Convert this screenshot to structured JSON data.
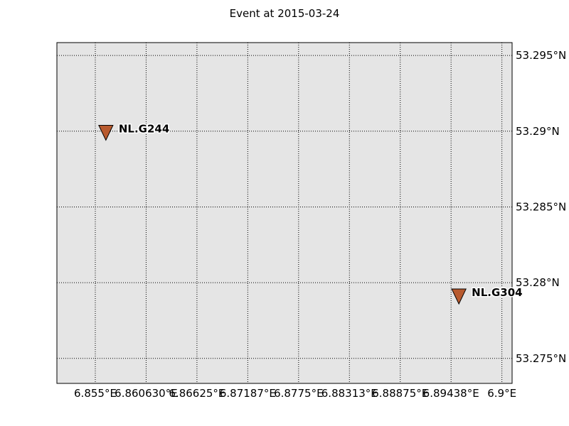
{
  "title": "Event at 2015-03-24",
  "map": {
    "background_color": "#e5e5e5",
    "grid": true,
    "lon_range": [
      6.85075,
      6.90113
    ],
    "lat_range": [
      53.27335,
      53.29585
    ],
    "lon_ticks": [
      {
        "value": 6.855,
        "label": "6.855°E"
      },
      {
        "value": 6.860625,
        "label": "6.860630°E"
      },
      {
        "value": 6.86625,
        "label": "6.86625°E"
      },
      {
        "value": 6.871875,
        "label": "6.87187°E"
      },
      {
        "value": 6.8775,
        "label": "6.8775°E"
      },
      {
        "value": 6.883125,
        "label": "6.88313°E"
      },
      {
        "value": 6.88875,
        "label": "6.88875°E"
      },
      {
        "value": 6.894375,
        "label": "6.89438°E"
      },
      {
        "value": 6.9,
        "label": "6.9°E"
      }
    ],
    "lat_ticks": [
      {
        "value": 53.275,
        "label": "53.275°N"
      },
      {
        "value": 53.28,
        "label": "53.28°N"
      },
      {
        "value": 53.285,
        "label": "53.285°N"
      },
      {
        "value": 53.29,
        "label": "53.29°N"
      },
      {
        "value": 53.295,
        "label": "53.295°N"
      }
    ],
    "stations": [
      {
        "name": "NL.G244",
        "lon": 6.85617,
        "lat": 53.28997,
        "marker": "inverted-triangle",
        "color": "#b85a2e"
      },
      {
        "name": "NL.G304",
        "lon": 6.89524,
        "lat": 53.27916,
        "marker": "inverted-triangle",
        "color": "#b85a2e"
      }
    ]
  }
}
